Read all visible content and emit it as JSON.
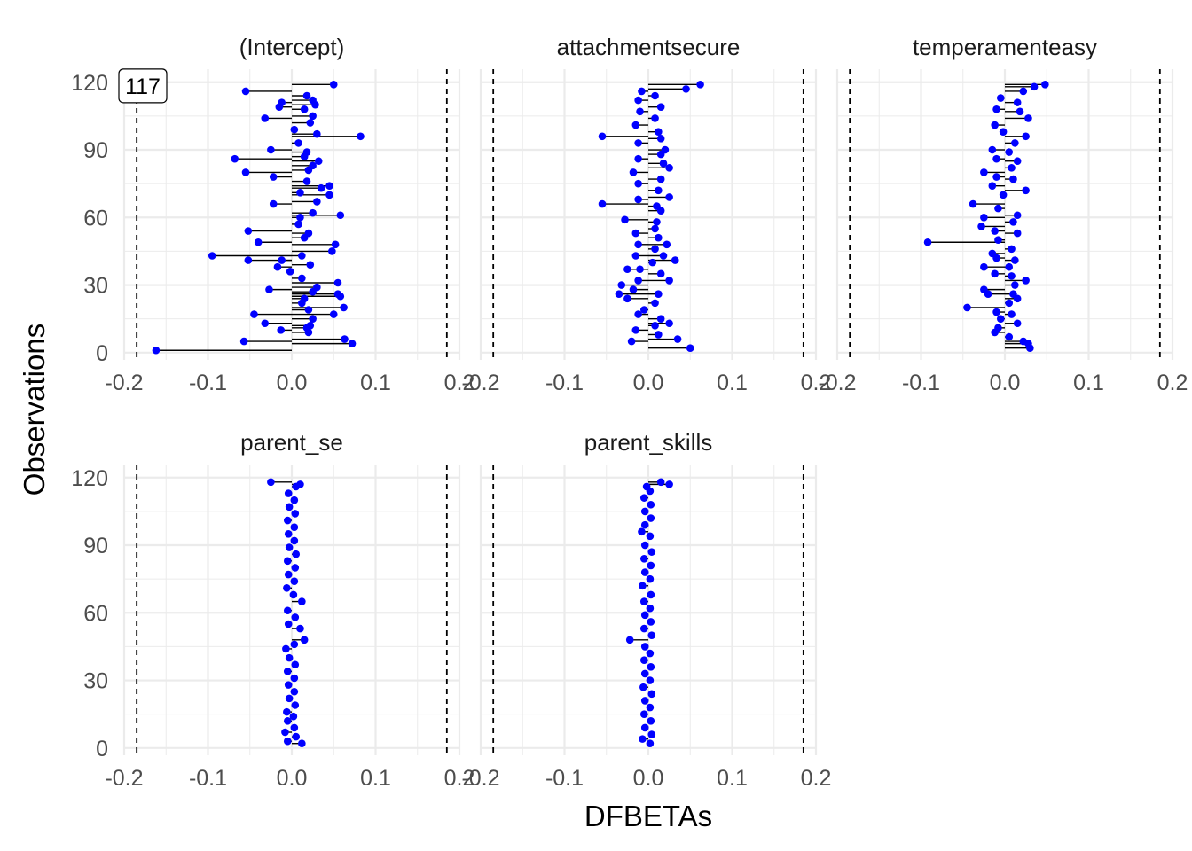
{
  "chart_data": {
    "type": "scatter",
    "xlabel": "DFBETAs",
    "ylabel": "Observations",
    "xlim": [
      -0.2,
      0.2
    ],
    "ylim": [
      0,
      120
    ],
    "x_ticks": [
      "-0.2",
      "-0.1",
      "0.0",
      "0.1",
      "0.2"
    ],
    "y_ticks": [
      "0",
      "30",
      "60",
      "90",
      "120"
    ],
    "threshold_lines": [
      -0.185,
      0.185
    ],
    "colors": {
      "point": "#0000ff",
      "segment": "#000000",
      "threshold": "#000000",
      "grid": "#ebebeb"
    },
    "grid": true,
    "point_label": {
      "panel": "(Intercept)",
      "text": "117",
      "x": -0.162,
      "y": 118
    },
    "panels": [
      {
        "title": "(Intercept)",
        "points": [
          [
            -0.162,
            1
          ],
          [
            0.072,
            4
          ],
          [
            0.063,
            6
          ],
          [
            -0.057,
            5
          ],
          [
            0.02,
            9
          ],
          [
            0.018,
            11
          ],
          [
            -0.013,
            10
          ],
          [
            -0.032,
            13
          ],
          [
            0.022,
            12
          ],
          [
            0.025,
            15
          ],
          [
            -0.045,
            17
          ],
          [
            0.05,
            17
          ],
          [
            0.062,
            20
          ],
          [
            0.02,
            19
          ],
          [
            0.012,
            22
          ],
          [
            0.058,
            25
          ],
          [
            0.015,
            24
          ],
          [
            0.055,
            26
          ],
          [
            0.025,
            27
          ],
          [
            -0.027,
            28
          ],
          [
            0.03,
            29
          ],
          [
            0.055,
            31
          ],
          [
            0.012,
            33
          ],
          [
            -0.002,
            36
          ],
          [
            -0.017,
            38
          ],
          [
            0.022,
            39
          ],
          [
            -0.012,
            41
          ],
          [
            -0.052,
            41
          ],
          [
            -0.095,
            43
          ],
          [
            0.012,
            43
          ],
          [
            0.048,
            45
          ],
          [
            -0.04,
            49
          ],
          [
            0.052,
            48
          ],
          [
            0.015,
            51
          ],
          [
            -0.052,
            54
          ],
          [
            0.02,
            53
          ],
          [
            0.008,
            57
          ],
          [
            0.01,
            60
          ],
          [
            0.058,
            61
          ],
          [
            0.025,
            62
          ],
          [
            -0.022,
            66
          ],
          [
            0.03,
            67
          ],
          [
            0.045,
            70
          ],
          [
            0.01,
            71
          ],
          [
            0.035,
            73
          ],
          [
            0.045,
            74
          ],
          [
            0.018,
            76
          ],
          [
            -0.022,
            78
          ],
          [
            -0.055,
            80
          ],
          [
            0.02,
            81
          ],
          [
            0.025,
            83
          ],
          [
            -0.068,
            86
          ],
          [
            0.032,
            85
          ],
          [
            0.015,
            87
          ],
          [
            -0.025,
            90
          ],
          [
            0.018,
            89
          ],
          [
            0.008,
            93
          ],
          [
            0.082,
            96
          ],
          [
            0.03,
            97
          ],
          [
            0.003,
            99
          ],
          [
            0.022,
            102
          ],
          [
            -0.032,
            104
          ],
          [
            0.025,
            105
          ],
          [
            0.015,
            108
          ],
          [
            -0.015,
            109
          ],
          [
            0.028,
            110
          ],
          [
            -0.012,
            111
          ],
          [
            0.025,
            112
          ],
          [
            0.018,
            114
          ],
          [
            -0.055,
            116
          ],
          [
            0.05,
            119
          ]
        ],
        "show_threshold": true,
        "x_tick_labels": true
      },
      {
        "title": "attachmentsecure",
        "points": [
          [
            0.05,
            2
          ],
          [
            0.035,
            6
          ],
          [
            -0.02,
            5
          ],
          [
            0.012,
            8
          ],
          [
            -0.015,
            10
          ],
          [
            0.008,
            12
          ],
          [
            0.025,
            13
          ],
          [
            0.015,
            15
          ],
          [
            -0.012,
            17
          ],
          [
            -0.005,
            19
          ],
          [
            0.008,
            22
          ],
          [
            -0.025,
            24
          ],
          [
            0.012,
            26
          ],
          [
            -0.035,
            26
          ],
          [
            -0.018,
            28
          ],
          [
            -0.032,
            30
          ],
          [
            -0.012,
            32
          ],
          [
            0.025,
            32
          ],
          [
            0.015,
            35
          ],
          [
            -0.01,
            37
          ],
          [
            -0.025,
            37
          ],
          [
            0.005,
            40
          ],
          [
            0.032,
            41
          ],
          [
            0.018,
            43
          ],
          [
            -0.015,
            43
          ],
          [
            0.008,
            46
          ],
          [
            -0.012,
            48
          ],
          [
            0.022,
            48
          ],
          [
            0.012,
            51
          ],
          [
            -0.015,
            53
          ],
          [
            0.008,
            55
          ],
          [
            0.01,
            58
          ],
          [
            -0.028,
            59
          ],
          [
            -0.055,
            66
          ],
          [
            0.01,
            65
          ],
          [
            0.015,
            63
          ],
          [
            -0.012,
            68
          ],
          [
            0.025,
            69
          ],
          [
            0.012,
            72
          ],
          [
            -0.012,
            75
          ],
          [
            0.015,
            77
          ],
          [
            -0.018,
            80
          ],
          [
            0.025,
            82
          ],
          [
            0.018,
            84
          ],
          [
            -0.012,
            86
          ],
          [
            0.015,
            88
          ],
          [
            0.02,
            90
          ],
          [
            -0.012,
            93
          ],
          [
            -0.055,
            96
          ],
          [
            0.015,
            95
          ],
          [
            0.012,
            98
          ],
          [
            -0.015,
            101
          ],
          [
            0.008,
            104
          ],
          [
            -0.01,
            107
          ],
          [
            0.015,
            109
          ],
          [
            -0.012,
            112
          ],
          [
            0.008,
            114
          ],
          [
            -0.008,
            116
          ],
          [
            0.045,
            117
          ],
          [
            0.062,
            119
          ]
        ],
        "show_threshold": true,
        "x_tick_labels": true
      },
      {
        "title": "temperamenteasy",
        "points": [
          [
            0.03,
            2
          ],
          [
            0.028,
            4
          ],
          [
            0.022,
            5
          ],
          [
            0.005,
            7
          ],
          [
            -0.012,
            9
          ],
          [
            -0.008,
            11
          ],
          [
            0.015,
            13
          ],
          [
            -0.005,
            15
          ],
          [
            0.008,
            17
          ],
          [
            -0.01,
            18
          ],
          [
            -0.045,
            20
          ],
          [
            0.005,
            22
          ],
          [
            0.015,
            24
          ],
          [
            0.01,
            26
          ],
          [
            -0.02,
            26
          ],
          [
            -0.025,
            28
          ],
          [
            0.012,
            30
          ],
          [
            0.025,
            32
          ],
          [
            0.008,
            34
          ],
          [
            -0.012,
            35
          ],
          [
            -0.025,
            38
          ],
          [
            0.005,
            38
          ],
          [
            0.012,
            41
          ],
          [
            -0.01,
            42
          ],
          [
            -0.015,
            44
          ],
          [
            0.008,
            46
          ],
          [
            -0.092,
            49
          ],
          [
            -0.008,
            50
          ],
          [
            0.015,
            53
          ],
          [
            -0.012,
            54
          ],
          [
            -0.028,
            56
          ],
          [
            0.01,
            58
          ],
          [
            -0.025,
            60
          ],
          [
            0.015,
            61
          ],
          [
            -0.038,
            66
          ],
          [
            -0.008,
            64
          ],
          [
            0.025,
            72
          ],
          [
            -0.002,
            70
          ],
          [
            -0.015,
            74
          ],
          [
            0.01,
            77
          ],
          [
            -0.01,
            78
          ],
          [
            -0.025,
            80
          ],
          [
            0.008,
            82
          ],
          [
            0.015,
            85
          ],
          [
            -0.01,
            86
          ],
          [
            0.005,
            89
          ],
          [
            -0.015,
            90
          ],
          [
            0.012,
            93
          ],
          [
            0.025,
            96
          ],
          [
            -0.002,
            98
          ],
          [
            -0.012,
            101
          ],
          [
            0.028,
            104
          ],
          [
            0.018,
            107
          ],
          [
            -0.01,
            108
          ],
          [
            0.015,
            111
          ],
          [
            -0.005,
            113
          ],
          [
            0.022,
            116
          ],
          [
            0.048,
            119
          ],
          [
            0.035,
            118
          ]
        ],
        "show_threshold": true,
        "x_tick_labels": true
      },
      {
        "title": "parent_se",
        "points": [
          [
            0.012,
            2
          ],
          [
            -0.005,
            3
          ],
          [
            0.005,
            5
          ],
          [
            -0.008,
            7
          ],
          [
            0.003,
            9
          ],
          [
            -0.005,
            12
          ],
          [
            0.002,
            14
          ],
          [
            -0.006,
            16
          ],
          [
            0.004,
            19
          ],
          [
            -0.003,
            22
          ],
          [
            0.003,
            25
          ],
          [
            -0.004,
            28
          ],
          [
            0.003,
            31
          ],
          [
            -0.005,
            34
          ],
          [
            0.004,
            37
          ],
          [
            -0.003,
            40
          ],
          [
            -0.007,
            44
          ],
          [
            0.003,
            46
          ],
          [
            0.015,
            48
          ],
          [
            0.01,
            53
          ],
          [
            -0.004,
            55
          ],
          [
            0.004,
            58
          ],
          [
            -0.005,
            61
          ],
          [
            0.012,
            65
          ],
          [
            0.002,
            68
          ],
          [
            -0.006,
            71
          ],
          [
            0.003,
            74
          ],
          [
            -0.004,
            77
          ],
          [
            0.004,
            80
          ],
          [
            -0.005,
            83
          ],
          [
            0.005,
            86
          ],
          [
            -0.003,
            89
          ],
          [
            0.003,
            92
          ],
          [
            -0.004,
            95
          ],
          [
            0.003,
            98
          ],
          [
            -0.005,
            101
          ],
          [
            0.004,
            104
          ],
          [
            -0.003,
            107
          ],
          [
            0.003,
            110
          ],
          [
            -0.004,
            113
          ],
          [
            0.005,
            116
          ],
          [
            0.01,
            117
          ],
          [
            -0.025,
            118
          ]
        ],
        "show_threshold": true,
        "x_tick_labels": true
      },
      {
        "title": "parent_skills",
        "points": [
          [
            0.002,
            2
          ],
          [
            -0.007,
            4
          ],
          [
            0.004,
            6
          ],
          [
            -0.004,
            9
          ],
          [
            0.003,
            12
          ],
          [
            -0.005,
            15
          ],
          [
            0.002,
            18
          ],
          [
            -0.004,
            21
          ],
          [
            0.004,
            24
          ],
          [
            -0.006,
            27
          ],
          [
            0.002,
            30
          ],
          [
            -0.004,
            33
          ],
          [
            0.003,
            36
          ],
          [
            -0.005,
            39
          ],
          [
            0.002,
            42
          ],
          [
            -0.004,
            45
          ],
          [
            -0.022,
            48
          ],
          [
            0.004,
            50
          ],
          [
            -0.005,
            53
          ],
          [
            0.003,
            56
          ],
          [
            -0.004,
            59
          ],
          [
            0.002,
            62
          ],
          [
            -0.005,
            65
          ],
          [
            0.003,
            68
          ],
          [
            -0.007,
            72
          ],
          [
            0.002,
            75
          ],
          [
            -0.004,
            78
          ],
          [
            0.003,
            81
          ],
          [
            -0.005,
            84
          ],
          [
            0.004,
            87
          ],
          [
            -0.004,
            90
          ],
          [
            -0.008,
            96
          ],
          [
            0.002,
            94
          ],
          [
            -0.004,
            99
          ],
          [
            0.003,
            102
          ],
          [
            -0.004,
            105
          ],
          [
            0.003,
            108
          ],
          [
            -0.005,
            111
          ],
          [
            0.002,
            114
          ],
          [
            -0.002,
            116
          ],
          [
            0.015,
            118
          ],
          [
            0.025,
            117
          ]
        ],
        "show_threshold": true,
        "x_tick_labels": true
      }
    ]
  }
}
